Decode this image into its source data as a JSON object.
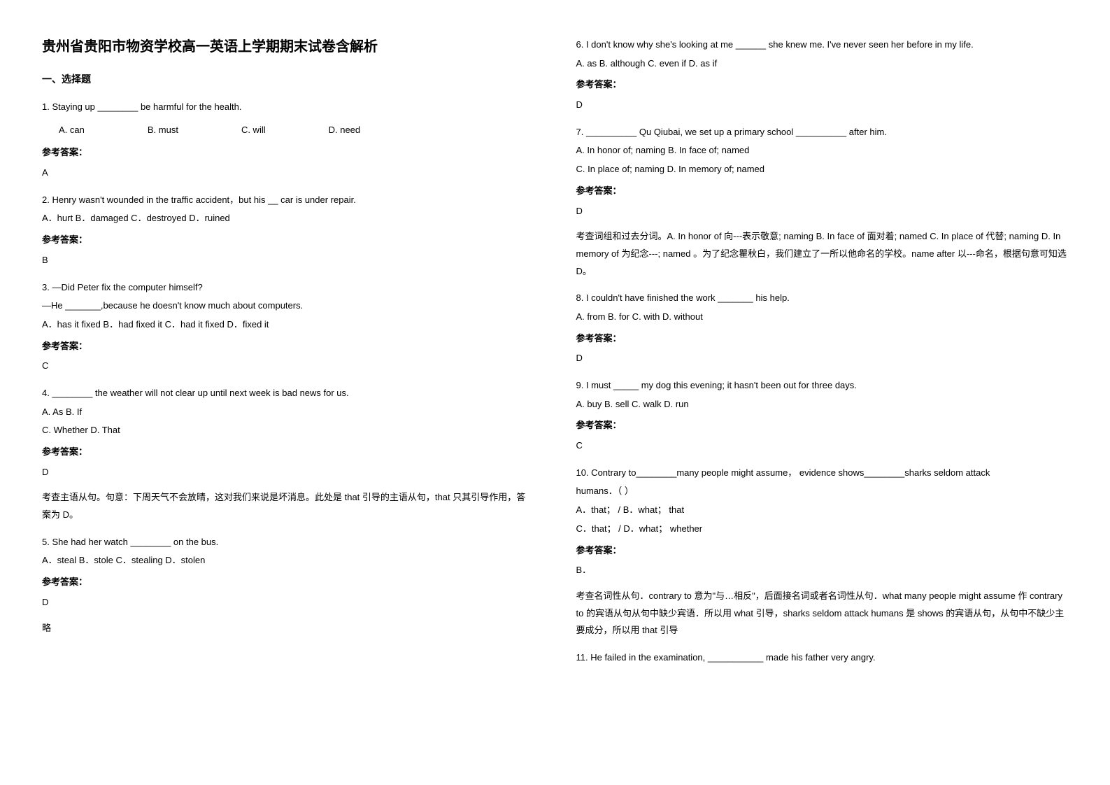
{
  "title": "贵州省贵阳市物资学校高一英语上学期期末试卷含解析",
  "sectionLabel": "一、选择题",
  "q1": {
    "text": "1. Staying up ________ be harmful for the health.",
    "optA": "A.  can",
    "optB": "B.  must",
    "optC": "C.  will",
    "optD": "D.  need",
    "ansLabel": "参考答案：",
    "ans": "A"
  },
  "q2": {
    "text": "  2. Henry wasn't wounded in the traffic accident，but his __ car is under repair.",
    "opts": " A．hurt   B．damaged   C．destroyed   D．ruined",
    "ansLabel": "参考答案：",
    "ans": "B"
  },
  "q3": {
    "l1": "3. —Did Peter fix the computer himself?",
    "l2": "—He _______,because he doesn't know much about computers.",
    "opts": " A．has it fixed      B．had fixed it              C．had it fixed           D．fixed it",
    "ansLabel": "参考答案：",
    "ans": "C"
  },
  "q4": {
    "text": "4. ________ the weather will not clear up until next week is bad news for us.",
    "l1": "A. As   B. If",
    "l2": "C. Whether   D. That",
    "ansLabel": "参考答案：",
    "ans": "D",
    "expl": "考查主语从句。句意：下周天气不会放晴，这对我们来说是坏消息。此处是 that 引导的主语从句，that 只其引导作用，答案为 D。"
  },
  "q5": {
    "text": "5. She had her watch ________ on the bus.",
    "opts": " A．steal   B．stole    C．stealing D．stolen",
    "ansLabel": "参考答案：",
    "ans": "D",
    "note": "略"
  },
  "q6": {
    "text": "6. I don't know why she's looking at me ______ she knew me. I've never seen her before in my life.",
    "opts": "A. as                B. although      C. even if   D. as if",
    "ansLabel": "参考答案：",
    "ans": "D"
  },
  "q7": {
    "text": "7. __________ Qu Qiubai, we set up a primary school __________ after him.",
    "l1": "A. In honor of; naming   B. In face of; named",
    "l2": "C. In place of; naming   D. In memory of; named",
    "ansLabel": "参考答案：",
    "ans": "D",
    "expl": "考查词组和过去分词。A. In honor of 向---表示敬意; naming   B. In face of 面对着; named C. In place of 代替; naming   D. In memory of 为纪念---; named 。为了纪念瞿秋白，我们建立了一所以他命名的学校。name after 以---命名，根据句意可知选 D。"
  },
  "q8": {
    "text": "8. I couldn't have finished the work _______ his help.",
    "opts": "A. from           B. for                    C. with             D. without",
    "ansLabel": "参考答案：",
    "ans": "D"
  },
  "q9": {
    "text": "9. I must _____ my dog this evening;  it hasn't been out for three days.",
    "opts": "A. buy    B. sell           C. walk             D. run",
    "ansLabel": "参考答案：",
    "ans": "C"
  },
  "q10": {
    "text": "10. Contrary to________many people might assume， evidence shows________sharks seldom attack",
    "text2": "   humans．（      ）",
    "l1": "   A．that； / B．what； that",
    "l2": "   C．that； / D．what； whether",
    "ansLabel": "参考答案：",
    "ans": "B．",
    "expl": "考查名词性从句．contrary to 意为\"与…相反\"，后面接名词或者名词性从句．what many people might assume 作 contrary to 的宾语从句从句中缺少宾语．所以用 what 引导，sharks seldom attack humans 是 shows 的宾语从句，从句中不缺少主要成分，所以用 that 引导"
  },
  "q11": {
    "text": "11. He failed in the examination, ___________ made his father very angry."
  }
}
